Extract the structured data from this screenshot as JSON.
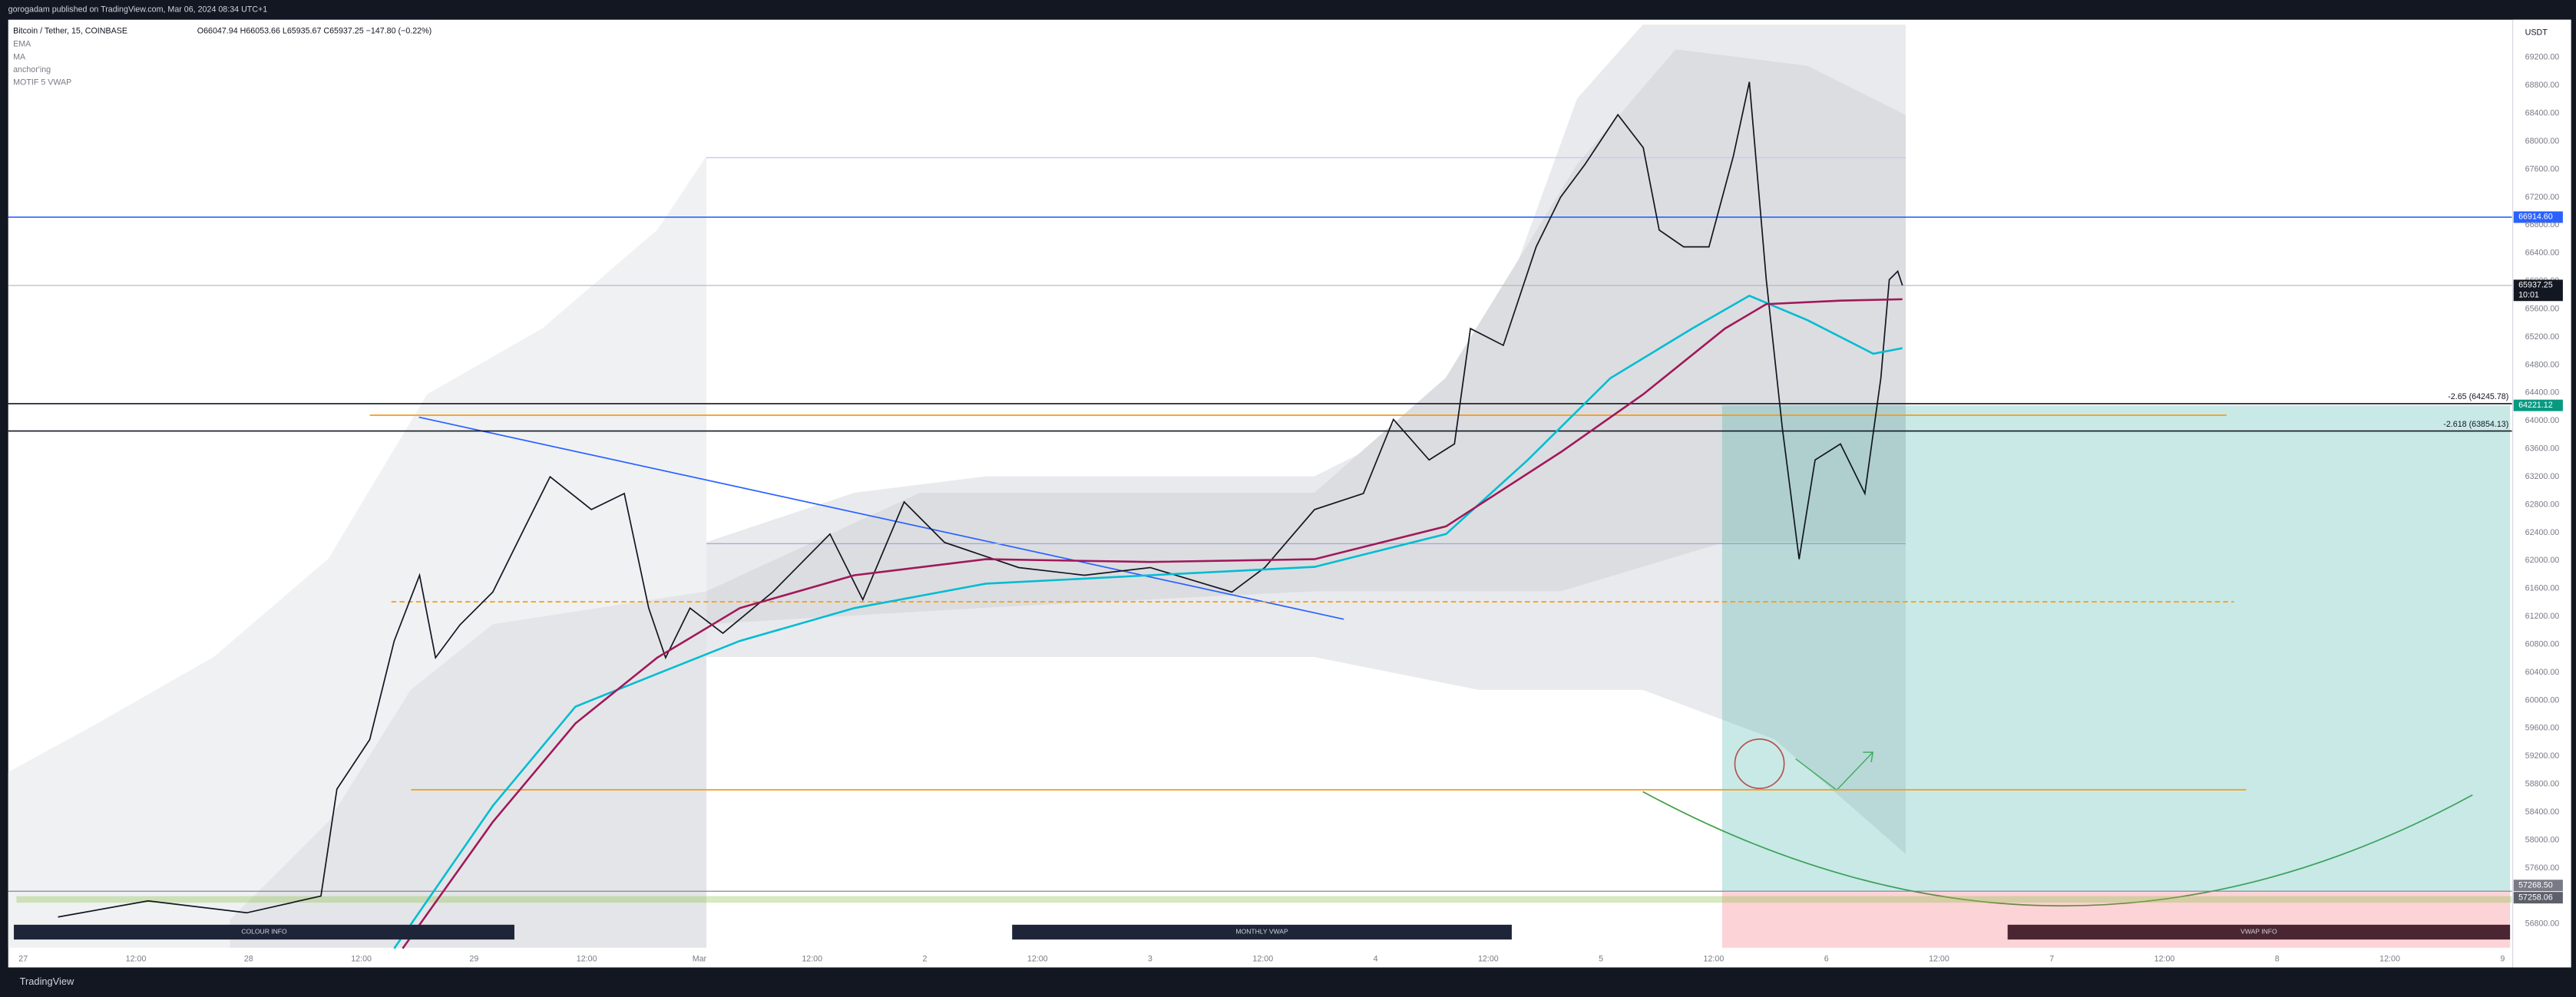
{
  "header": {
    "publisher": "gorogadam published on TradingView.com, Mar 06, 2024 08:34 UTC+1",
    "symbol": "Bitcoin / Tether, 15, COINBASE",
    "ohlc": "O66047.94 H66053.66 L65935.67 C65937.25 −147.80 (−0.22%)",
    "indicators": [
      "EMA",
      "MA",
      "anchor'ing",
      "MOTIF 5 VWAP"
    ]
  },
  "footer": {
    "brand": "TradingView"
  },
  "chart_data": {
    "type": "line",
    "currency": "USDT",
    "xlim": [
      -1.6,
      265
    ],
    "ylim": [
      56460,
      69740
    ],
    "xticks": [
      {
        "value": 0,
        "label": "27"
      },
      {
        "value": 12,
        "label": "12:00"
      },
      {
        "value": 24,
        "label": "28"
      },
      {
        "value": 36,
        "label": "12:00"
      },
      {
        "value": 48,
        "label": "29"
      },
      {
        "value": 60,
        "label": "12:00"
      },
      {
        "value": 72,
        "label": "Mar"
      },
      {
        "value": 84,
        "label": "12:00"
      },
      {
        "value": 96,
        "label": "2"
      },
      {
        "value": 108,
        "label": "12:00"
      },
      {
        "value": 120,
        "label": "3"
      },
      {
        "value": 132,
        "label": "12:00"
      },
      {
        "value": 144,
        "label": "4"
      },
      {
        "value": 156,
        "label": "12:00"
      },
      {
        "value": 168,
        "label": "5"
      },
      {
        "value": 180,
        "label": "12:00"
      },
      {
        "value": 192,
        "label": "6"
      },
      {
        "value": 204,
        "label": "12:00"
      },
      {
        "value": 216,
        "label": "7"
      },
      {
        "value": 228,
        "label": "12:00"
      },
      {
        "value": 240,
        "label": "8"
      },
      {
        "value": 252,
        "label": "12:00"
      },
      {
        "value": 264,
        "label": "9"
      }
    ],
    "yticks": [
      {
        "value": 56800,
        "label": "56800.00"
      },
      {
        "value": 57200,
        "label": "57200.00"
      },
      {
        "value": 57600,
        "label": "57600.00"
      },
      {
        "value": 58000,
        "label": "58000.00"
      },
      {
        "value": 58400,
        "label": "58400.00"
      },
      {
        "value": 58800,
        "label": "58800.00"
      },
      {
        "value": 59200,
        "label": "59200.00"
      },
      {
        "value": 59600,
        "label": "59600.00"
      },
      {
        "value": 60000,
        "label": "60000.00"
      },
      {
        "value": 60400,
        "label": "60400.00"
      },
      {
        "value": 60800,
        "label": "60800.00"
      },
      {
        "value": 61200,
        "label": "61200.00"
      },
      {
        "value": 61600,
        "label": "61600.00"
      },
      {
        "value": 62000,
        "label": "62000.00"
      },
      {
        "value": 62400,
        "label": "62400.00"
      },
      {
        "value": 62800,
        "label": "62800.00"
      },
      {
        "value": 63200,
        "label": "63200.00"
      },
      {
        "value": 63600,
        "label": "63600.00"
      },
      {
        "value": 64000,
        "label": "64000.00"
      },
      {
        "value": 64400,
        "label": "64400.00"
      },
      {
        "value": 64800,
        "label": "64800.00"
      },
      {
        "value": 65200,
        "label": "65200.00"
      },
      {
        "value": 65600,
        "label": "65600.00"
      },
      {
        "value": 66000,
        "label": "66000.00"
      },
      {
        "value": 66400,
        "label": "66400.00"
      },
      {
        "value": 66800,
        "label": "66800.00"
      },
      {
        "value": 67200,
        "label": "67200.00"
      },
      {
        "value": 67600,
        "label": "67600.00"
      },
      {
        "value": 68000,
        "label": "68000.00"
      },
      {
        "value": 68400,
        "label": "68400.00"
      },
      {
        "value": 68800,
        "label": "68800.00"
      },
      {
        "value": 69200,
        "label": "69200.00"
      }
    ],
    "series": [
      {
        "color": "#131722",
        "x": [
          3.7,
          13.3,
          23.8,
          31.7,
          33.4,
          36.9,
          39.5,
          42.2,
          43.9,
          46.5,
          50.0,
          53.5,
          56.1,
          60.5,
          64.0,
          66.6,
          68.4,
          71.0,
          74.5,
          79.8,
          85.9,
          89.4,
          93.8,
          98.1,
          106.0,
          113.0,
          120.0,
          128.7,
          132.2,
          137.5,
          142.7,
          145.9,
          149.7,
          152.4,
          154.1,
          157.6,
          161.1,
          163.7,
          166.3,
          169.8,
          172.5,
          174.2,
          176.8,
          179.5,
          182.1,
          183.8,
          185.6,
          187.3,
          189.1,
          190.8,
          193.5,
          196.1,
          197.8,
          198.7,
          199.6,
          200.1
        ],
        "values": [
          56900,
          57130,
          56960,
          57200,
          58730,
          59440,
          60850,
          61790,
          60610,
          61080,
          61550,
          62500,
          63200,
          62730,
          62960,
          61320,
          60610,
          61320,
          60960,
          61550,
          62380,
          61440,
          62840,
          62260,
          61900,
          61790,
          61900,
          61550,
          61900,
          62730,
          62960,
          64020,
          63440,
          63670,
          65320,
          65080,
          66490,
          67200,
          67670,
          68380,
          67910,
          66730,
          66490,
          66490,
          67790,
          68850,
          66020,
          63910,
          62020,
          63440,
          63670,
          62960,
          64610,
          66020,
          66140,
          65937.25
        ]
      },
      {
        "color": "#00bcd4",
        "x": [
          39.5,
          50.0,
          58.8,
          67.5,
          76.3,
          88.5,
          102.5,
          120.0,
          137.5,
          151.5,
          160.2,
          169.0,
          177.7,
          183.8,
          190.0,
          197.0,
          200.1
        ],
        "values": [
          56450,
          58490,
          59910,
          60380,
          60850,
          61320,
          61670,
          61790,
          61910,
          62380,
          63440,
          64610,
          65320,
          65790,
          65440,
          64960,
          65040
        ]
      },
      {
        "color": "#a0185a",
        "x": [
          40.4,
          50.0,
          58.8,
          67.5,
          76.3,
          88.5,
          102.5,
          120.0,
          137.5,
          151.5,
          163.7,
          172.5,
          181.2,
          185.6,
          193.5,
          200.1
        ],
        "values": [
          56450,
          58260,
          59670,
          60610,
          61320,
          61790,
          62020,
          61980,
          62020,
          62490,
          63550,
          64380,
          65320,
          65670,
          65720,
          65740
        ]
      }
    ],
    "levels": [
      {
        "value": 66914.6,
        "label": "66914.60",
        "color": "#2962ff"
      },
      {
        "value": 64245.78,
        "color": "#131722",
        "annotation": "-2.65 (64245.78)"
      },
      {
        "value": 63854.13,
        "color": "#131722",
        "annotation": "-2.618 (63854.13)"
      },
      {
        "value": 64080,
        "color": "#f59c1a",
        "from": 36.9,
        "to": 234.6
      },
      {
        "value": 61410,
        "color": "#f59c1a",
        "dashed": true,
        "from": 39.2,
        "to": 235.4
      },
      {
        "value": 58720,
        "color": "#f59c1a",
        "from": 41.3,
        "to": 236.7
      }
    ],
    "last_price": {
      "value": 65937.25,
      "label": "65937.25",
      "countdown": "10:01"
    },
    "position": {
      "from": 180.9,
      "to": 264.8,
      "target": {
        "value": 64221.12,
        "label": "64221.12"
      },
      "entry": {
        "value": 57268.5,
        "label": "57268.50"
      },
      "stop": {
        "value": 57258.06,
        "label": "57258.06"
      }
    },
    "info_boxes": [
      {
        "label": "COLOUR INFO",
        "color": "#1e2538",
        "from": -1,
        "to": 52.3
      },
      {
        "label": "MONTHLY VWAP",
        "color": "#1e2538",
        "from": 105.3,
        "to": 158.5
      },
      {
        "label": "VWAP INFO",
        "color": "#4a2633",
        "from": 211.3,
        "to": 264.8
      }
    ]
  }
}
